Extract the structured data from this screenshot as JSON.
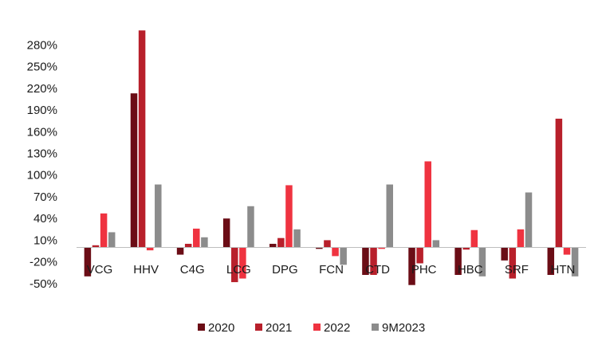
{
  "chart_data": {
    "type": "bar",
    "categories": [
      "VCG",
      "HHV",
      "C4G",
      "LCG",
      "DPG",
      "FCN",
      "CTD",
      "PHC",
      "HBC",
      "SRF",
      "HTN"
    ],
    "y_ticks": [
      "280%",
      "250%",
      "220%",
      "190%",
      "160%",
      "130%",
      "100%",
      "70%",
      "40%",
      "10%",
      "-20%",
      "-50%"
    ],
    "y_tick_values": [
      280,
      250,
      220,
      190,
      160,
      130,
      100,
      70,
      40,
      10,
      -20,
      -50
    ],
    "ylim": [
      -50,
      300
    ],
    "grid": false,
    "legend_position": "bottom",
    "series": [
      {
        "name": "2020",
        "color": "#6b0d16",
        "values": [
          -40,
          213,
          -10,
          40,
          5,
          -2,
          -38,
          -52,
          -38,
          -18,
          -38
        ]
      },
      {
        "name": "2021",
        "color": "#b8202b",
        "values": [
          3,
          300,
          5,
          -48,
          13,
          10,
          -38,
          -22,
          -3,
          -43,
          178
        ]
      },
      {
        "name": "2022",
        "color": "#ef3340",
        "values": [
          47,
          -4,
          26,
          -43,
          86,
          -12,
          -2,
          119,
          24,
          25,
          -10
        ]
      },
      {
        "name": "9M2023",
        "color": "#8c8c8c",
        "values": [
          21,
          87,
          14,
          57,
          25,
          -24,
          87,
          10,
          -40,
          76,
          -40
        ]
      }
    ]
  }
}
